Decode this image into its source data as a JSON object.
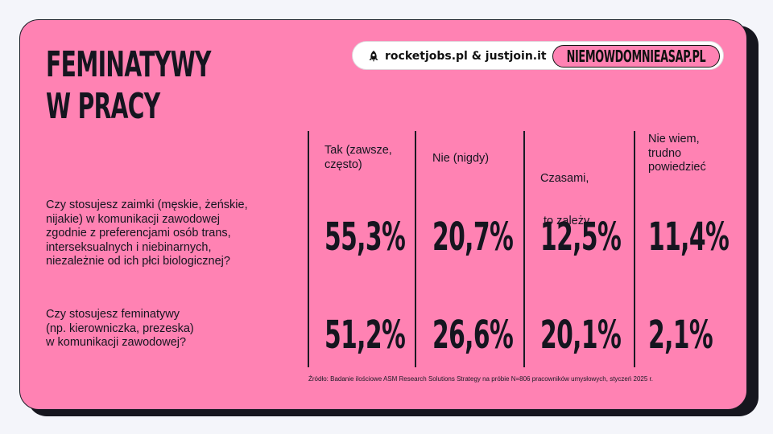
{
  "title_lines": [
    "FEMINATYWY",
    "W PRACY"
  ],
  "brand": {
    "left": "rocketjobs.pl & justjoin.it",
    "right": "NIEMOWDOMNIEASAP.PL"
  },
  "source": "Źródło: Badanie ilościowe ASM Research Solutions Strategy na próbie N=806 pracowników umysłowych, styczeń 2025 r.",
  "colors": {
    "background": "#ff82b3",
    "text": "#15151f",
    "shadow": "#16161e"
  },
  "chart_data": {
    "type": "table",
    "columns": [
      [
        "Tak (zawsze,",
        "często)"
      ],
      [
        "Nie (nigdy)"
      ],
      [
        "Czasami,",
        " to zależy"
      ],
      [
        "Nie wiem,",
        "trudno",
        "powiedzieć"
      ]
    ],
    "rows": [
      {
        "question": [
          "Czy stosujesz zaimki (męskie, żeńskie,",
          "nijakie) w komunikacji zawodowej",
          "zgodnie z preferencjami osób trans,",
          "interseksualnych i niebinarnych,",
          "niezależnie od ich płci biologicznej?"
        ],
        "values": [
          55.3,
          20.7,
          12.5,
          11.4
        ],
        "labels": [
          "55,3%",
          "20,7%",
          "12,5%",
          "11,4%"
        ]
      },
      {
        "question": [
          "Czy stosujesz feminatywy",
          "(np. kierowniczka, prezeska)",
          "w komunikacji zawodowej?"
        ],
        "values": [
          51.2,
          26.6,
          20.1,
          2.1
        ],
        "labels": [
          "51,2%",
          "26,6%",
          "20,1%",
          "2,1%"
        ]
      }
    ]
  }
}
